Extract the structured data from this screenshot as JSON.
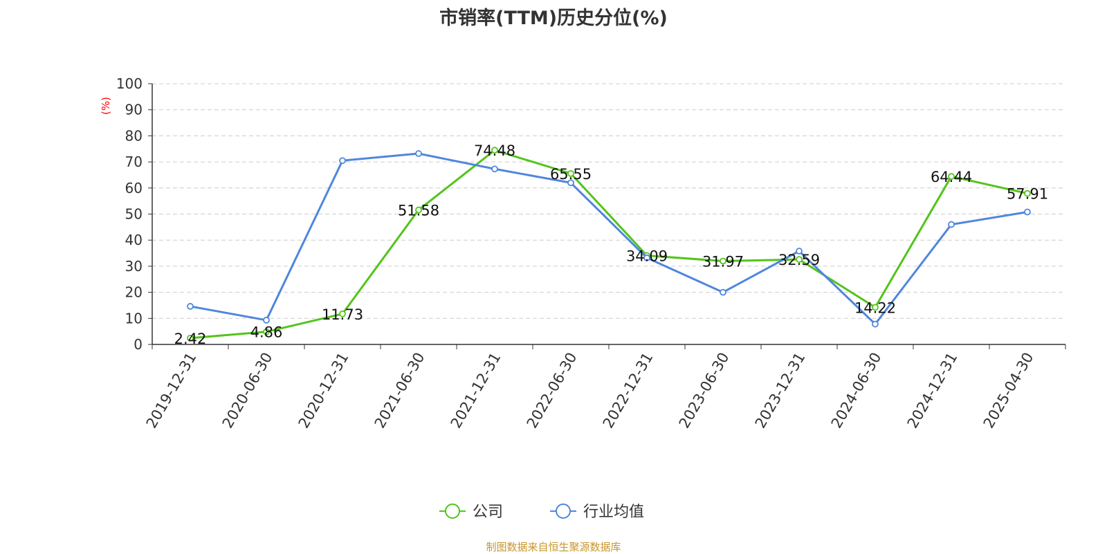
{
  "chart_data": {
    "type": "line",
    "title": "市销率(TTM)历史分位(%)",
    "ylabel": "(%)",
    "xlabel": "",
    "ylim": [
      0,
      100
    ],
    "yticks": [
      "0",
      "10",
      "20",
      "30",
      "40",
      "50",
      "60",
      "70",
      "80",
      "90",
      "100"
    ],
    "categories": [
      "2019-12-31",
      "2020-06-30",
      "2020-12-31",
      "2021-06-30",
      "2021-12-31",
      "2022-06-30",
      "2022-12-31",
      "2023-06-30",
      "2023-12-31",
      "2024-06-30",
      "2024-12-31",
      "2025-04-30"
    ],
    "series": [
      {
        "name": "公司",
        "color": "#52c41a",
        "values": [
          2.42,
          4.86,
          11.73,
          51.58,
          74.48,
          65.55,
          34.09,
          31.97,
          32.59,
          14.22,
          64.44,
          57.91
        ],
        "labels": [
          "2.42",
          "4.86",
          "11.73",
          "51.58",
          "74.48",
          "65.55",
          "34.09",
          "31.97",
          "32.59",
          "14.22",
          "64.44",
          "57.91"
        ]
      },
      {
        "name": "行业均值",
        "color": "#4f86dd",
        "values": [
          14.6,
          9.3,
          70.5,
          73.2,
          67.3,
          62.0,
          33.2,
          20.0,
          35.8,
          7.8,
          46.0,
          50.8
        ]
      }
    ],
    "grid": true,
    "legend": "bottom-center"
  },
  "footer": "制图数据来自恒生聚源数据库"
}
